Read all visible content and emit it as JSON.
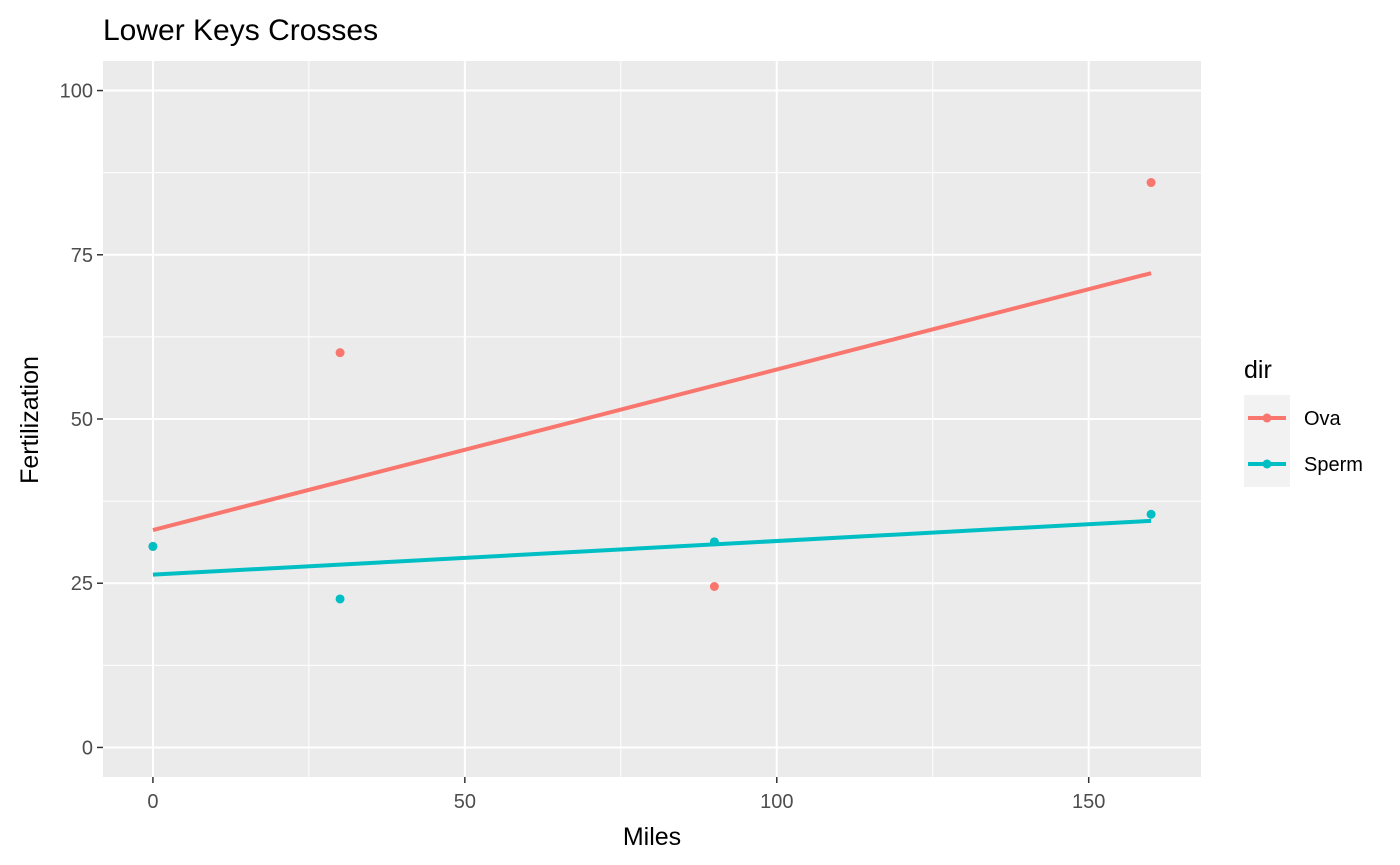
{
  "chart_data": {
    "type": "scatter",
    "title": "Lower Keys Crosses",
    "xlabel": "Miles",
    "ylabel": "Fertilization",
    "xlim": [
      -8,
      168
    ],
    "ylim": [
      -4.5,
      104.5
    ],
    "xticks": [
      0,
      50,
      100,
      150
    ],
    "yticks": [
      0,
      25,
      50,
      75,
      100
    ],
    "grid": true,
    "legend": {
      "title": "dir",
      "placement": "right"
    },
    "series": [
      {
        "name": "Ova",
        "color": "#F8766D",
        "points": [
          {
            "x": 0,
            "y": 30.6
          },
          {
            "x": 30,
            "y": 60.1
          },
          {
            "x": 90,
            "y": 24.5
          },
          {
            "x": 160,
            "y": 86.0
          }
        ],
        "fit": {
          "x": [
            0,
            160
          ],
          "y": [
            33.1,
            72.2
          ]
        }
      },
      {
        "name": "Sperm",
        "color": "#00BFC4",
        "points": [
          {
            "x": 0,
            "y": 30.6
          },
          {
            "x": 30,
            "y": 22.6
          },
          {
            "x": 90,
            "y": 31.3
          },
          {
            "x": 160,
            "y": 35.5
          }
        ],
        "fit": {
          "x": [
            0,
            160
          ],
          "y": [
            26.3,
            34.5
          ]
        }
      }
    ]
  }
}
